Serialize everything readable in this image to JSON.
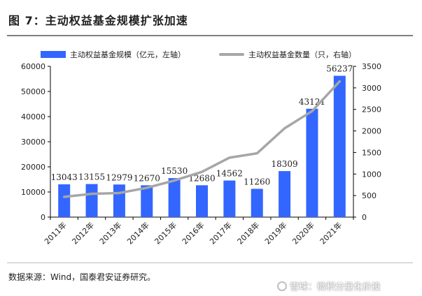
{
  "title": "图 7：主动权益基金规模扩张加速",
  "source": "数据来源：Wind，国泰君安证券研究。",
  "watermark": "雪球：微积分量化价投",
  "chart_data": {
    "type": "bar",
    "categories": [
      "2011年",
      "2012年",
      "2013年",
      "2014年",
      "2015年",
      "2016年",
      "2017年",
      "2018年",
      "2019年",
      "2020年",
      "2021年"
    ],
    "series": [
      {
        "name": "主动权益基金规模（亿元，左轴）",
        "type": "bar",
        "axis": "left",
        "color": "#3366ff",
        "values": [
          13043,
          13155,
          12979,
          12670,
          15530,
          12680,
          14562,
          11260,
          18309,
          43121,
          56237
        ]
      },
      {
        "name": "主动权益基金数量（只，右轴）",
        "type": "line",
        "axis": "right",
        "color": "#a6a6a6",
        "values": [
          470,
          540,
          560,
          680,
          850,
          1050,
          1380,
          1480,
          2060,
          2460,
          3150
        ]
      }
    ],
    "y_left": {
      "min": 0,
      "max": 60000,
      "ticks": [
        0,
        10000,
        20000,
        30000,
        40000,
        50000,
        60000
      ]
    },
    "y_right": {
      "min": 0,
      "max": 3500,
      "ticks": [
        0,
        500,
        1000,
        1500,
        2000,
        2500,
        3000,
        3500
      ]
    },
    "data_labels": true,
    "grid": false,
    "legend": "top"
  }
}
